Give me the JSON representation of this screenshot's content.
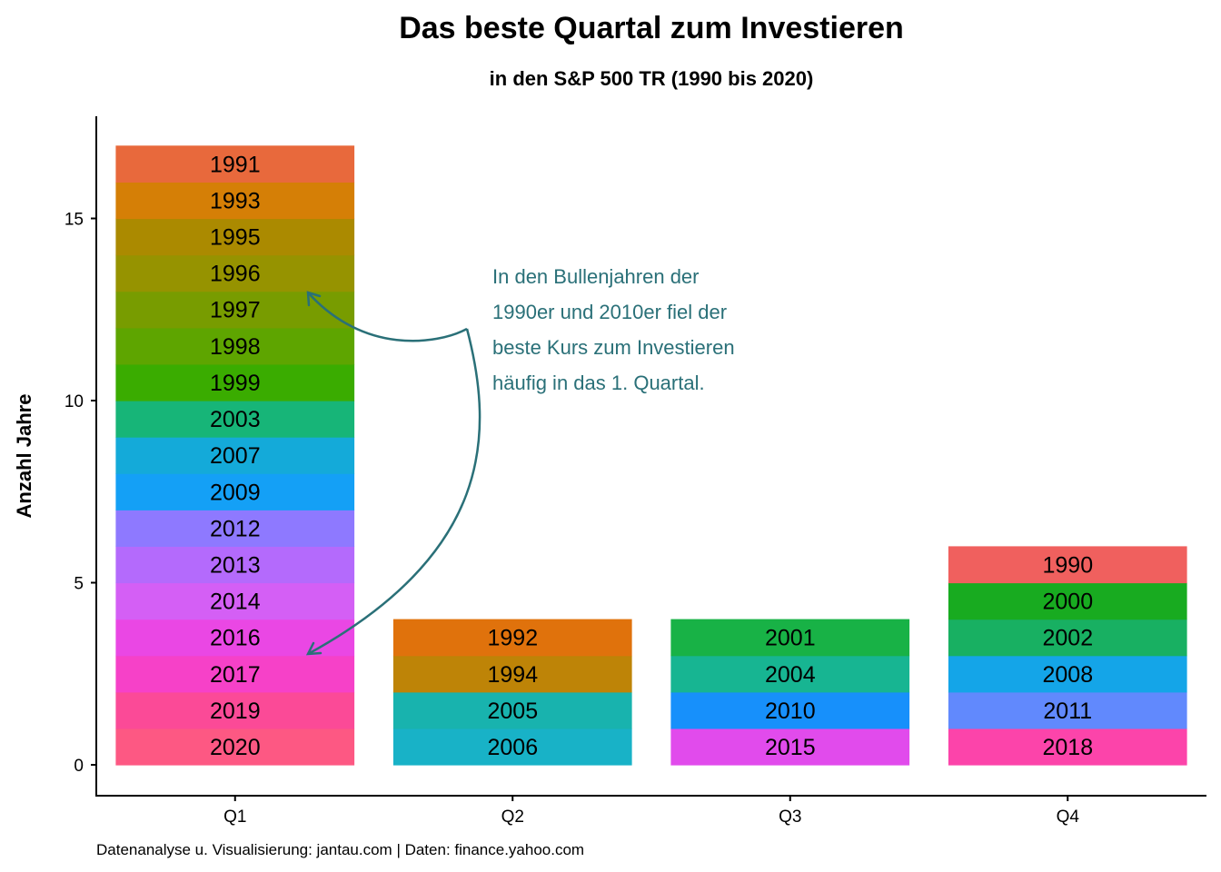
{
  "chart_data": {
    "type": "bar",
    "stacked": true,
    "title": "Das beste Quartal zum Investieren",
    "subtitle": "in den S&P 500 TR (1990 bis 2020)",
    "xlabel": "",
    "ylabel": "Anzahl Jahre",
    "ylim": [
      0,
      17
    ],
    "yticks": [
      0,
      5,
      10,
      15
    ],
    "grid": false,
    "categories": [
      "Q1",
      "Q2",
      "Q3",
      "Q4"
    ],
    "values": [
      17,
      4,
      4,
      6
    ],
    "stacks": [
      {
        "category": "Q1",
        "segments": [
          {
            "label": "1991",
            "value": 1,
            "color": "#e8693c"
          },
          {
            "label": "1993",
            "value": 1,
            "color": "#d57f06"
          },
          {
            "label": "1995",
            "value": 1,
            "color": "#ab8a00"
          },
          {
            "label": "1996",
            "value": 1,
            "color": "#969300"
          },
          {
            "label": "1997",
            "value": 1,
            "color": "#789c00"
          },
          {
            "label": "1998",
            "value": 1,
            "color": "#5ea500"
          },
          {
            "label": "1999",
            "value": 1,
            "color": "#3aac00"
          },
          {
            "label": "2003",
            "value": 1,
            "color": "#17b578"
          },
          {
            "label": "2007",
            "value": 1,
            "color": "#14aad9"
          },
          {
            "label": "2009",
            "value": 1,
            "color": "#14a0f6"
          },
          {
            "label": "2012",
            "value": 1,
            "color": "#8e79ff"
          },
          {
            "label": "2013",
            "value": 1,
            "color": "#b46afc"
          },
          {
            "label": "2014",
            "value": 1,
            "color": "#d45ff5"
          },
          {
            "label": "2016",
            "value": 1,
            "color": "#ea47e4"
          },
          {
            "label": "2017",
            "value": 1,
            "color": "#f641c8"
          },
          {
            "label": "2019",
            "value": 1,
            "color": "#fb4a97"
          },
          {
            "label": "2020",
            "value": 1,
            "color": "#fd5883"
          }
        ]
      },
      {
        "category": "Q2",
        "segments": [
          {
            "label": "1992",
            "value": 1,
            "color": "#e0720c"
          },
          {
            "label": "1994",
            "value": 1,
            "color": "#be8407"
          },
          {
            "label": "2005",
            "value": 1,
            "color": "#18b3ae"
          },
          {
            "label": "2006",
            "value": 1,
            "color": "#18b2c7"
          }
        ]
      },
      {
        "category": "Q3",
        "segments": [
          {
            "label": "2001",
            "value": 1,
            "color": "#18b246"
          },
          {
            "label": "2004",
            "value": 1,
            "color": "#17b592"
          },
          {
            "label": "2010",
            "value": 1,
            "color": "#1790fb"
          },
          {
            "label": "2015",
            "value": 1,
            "color": "#e14bec"
          }
        ]
      },
      {
        "category": "Q4",
        "segments": [
          {
            "label": "1990",
            "value": 1,
            "color": "#f0605e"
          },
          {
            "label": "2000",
            "value": 1,
            "color": "#18ab20"
          },
          {
            "label": "2002",
            "value": 1,
            "color": "#18b062"
          },
          {
            "label": "2008",
            "value": 1,
            "color": "#14a5e8"
          },
          {
            "label": "2011",
            "value": 1,
            "color": "#6189fd"
          },
          {
            "label": "2018",
            "value": 1,
            "color": "#fc44aa"
          }
        ]
      }
    ],
    "annotation": {
      "lines": [
        "In den Bullenjahren der",
        "1990er und 2010er fiel der",
        "beste Kurs zum Investieren",
        "häufig in das 1. Quartal."
      ],
      "color": "#2a7078"
    },
    "caption": "Datenanalyse u. Visualisierung: jantau.com | Daten: finance.yahoo.com"
  }
}
